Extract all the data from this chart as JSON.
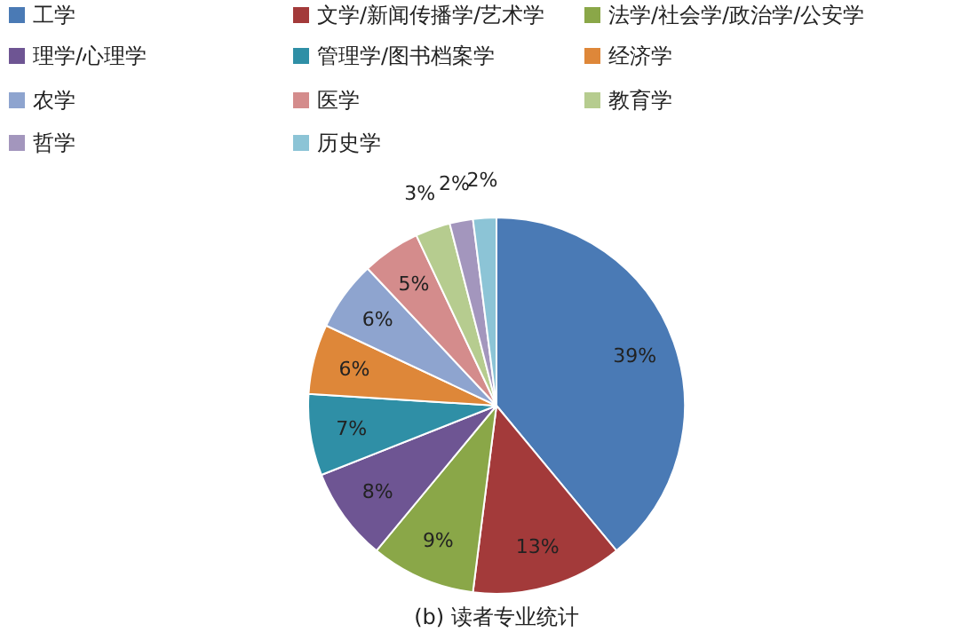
{
  "chart_data": {
    "type": "pie",
    "title": "(b) 读者专业统计",
    "categories": [
      "工学",
      "文学/新闻传播学/艺术学",
      "法学/社会学/政治学/公安学",
      "理学/心理学",
      "管理学/图书档案学",
      "经济学",
      "农学",
      "医学",
      "教育学",
      "哲学",
      "历史学"
    ],
    "values": [
      39,
      13,
      9,
      8,
      7,
      6,
      6,
      5,
      3,
      2,
      2
    ],
    "value_labels": [
      "39%",
      "13%",
      "9%",
      "8%",
      "7%",
      "6%",
      "6%",
      "5%",
      "3%",
      "2%",
      "2%"
    ],
    "colors": [
      "#4a7ab5",
      "#a33a3a",
      "#8aa748",
      "#6e5593",
      "#2f8fa6",
      "#de8739",
      "#8ea4cf",
      "#d48c8c",
      "#b6cc8f",
      "#a396bd",
      "#8cc4d6"
    ],
    "legend": "top"
  }
}
